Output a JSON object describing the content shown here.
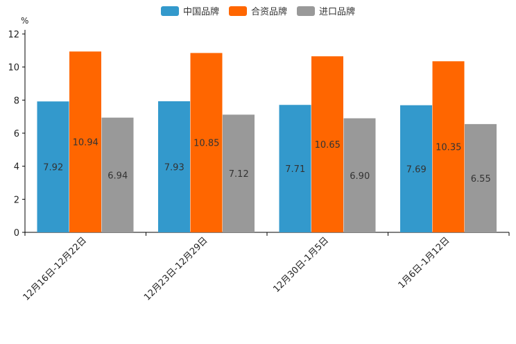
{
  "chart_data": {
    "type": "bar",
    "unit": "%",
    "ylim": [
      0,
      12
    ],
    "yticks": [
      0,
      2,
      4,
      6,
      8,
      10,
      12
    ],
    "legend_position": "top-center",
    "categories": [
      "12月16日-12月22日",
      "12月23日-12月29日",
      "12月30日-1月5日",
      "1月6日-1月12日"
    ],
    "series": [
      {
        "name": "中国品牌",
        "color": "#3399cc",
        "values": [
          7.92,
          7.93,
          7.71,
          7.69
        ],
        "labels": [
          "7.92",
          "7.93",
          "7.71",
          "7.69"
        ]
      },
      {
        "name": "合资品牌",
        "color": "#ff6600",
        "values": [
          10.94,
          10.85,
          10.65,
          10.35
        ],
        "labels": [
          "10.94",
          "10.85",
          "10.65",
          "10.35"
        ]
      },
      {
        "name": "进口品牌",
        "color": "#999999",
        "values": [
          6.94,
          7.12,
          6.9,
          6.55
        ],
        "labels": [
          "6.94",
          "7.12",
          "6.90",
          "6.55"
        ]
      }
    ]
  }
}
